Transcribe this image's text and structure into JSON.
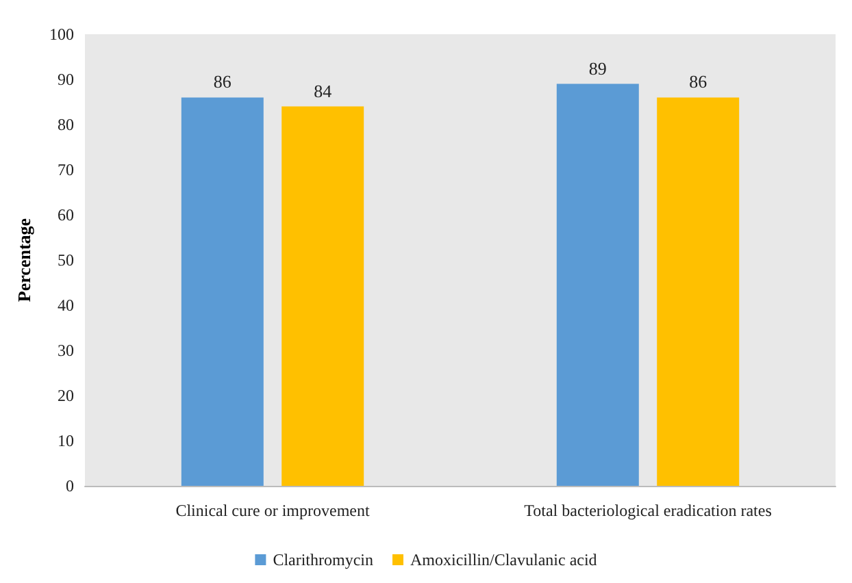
{
  "chart_data": {
    "type": "bar",
    "ylabel": "Percentage",
    "categories": [
      "Clinical cure or improvement",
      "Total bacteriological eradication rates"
    ],
    "series": [
      {
        "name": "Clarithromycin",
        "color": "#5b9bd5",
        "values": [
          86,
          89
        ]
      },
      {
        "name": "Amoxicillin/Clavulanic acid",
        "color": "#ffc000",
        "values": [
          84,
          86
        ]
      }
    ],
    "ylim": [
      0,
      100
    ],
    "yticks": [
      0,
      10,
      20,
      30,
      40,
      50,
      60,
      70,
      80,
      90,
      100
    ],
    "data_labels": true,
    "grid": false,
    "legend": "bottom"
  }
}
